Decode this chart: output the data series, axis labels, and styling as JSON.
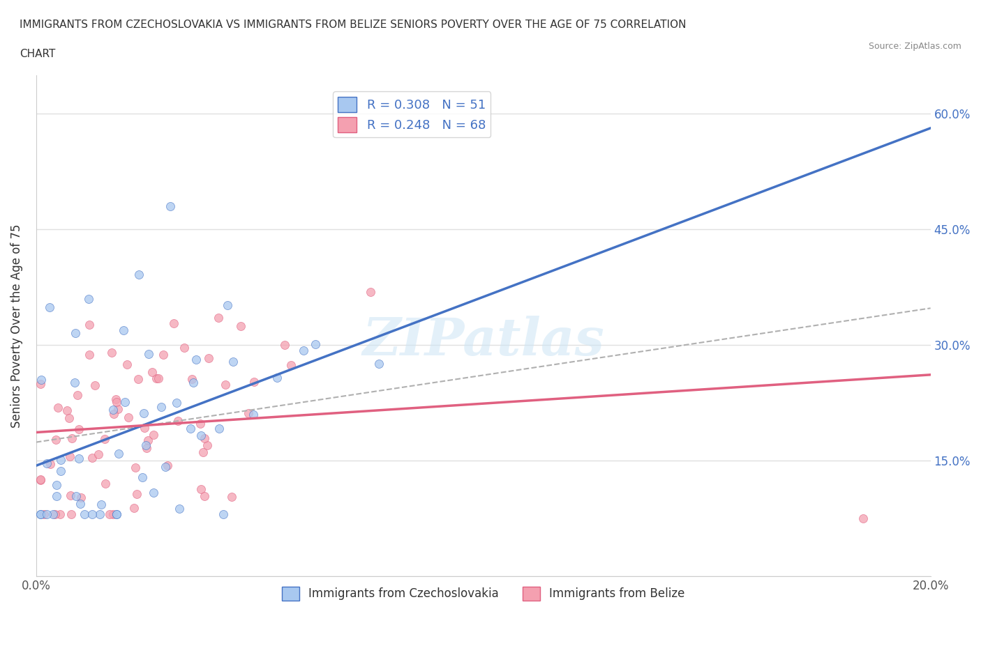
{
  "title_line1": "IMMIGRANTS FROM CZECHOSLOVAKIA VS IMMIGRANTS FROM BELIZE SENIORS POVERTY OVER THE AGE OF 75 CORRELATION",
  "title_line2": "CHART",
  "source": "Source: ZipAtlas.com",
  "ylabel": "Seniors Poverty Over the Age of 75",
  "series1_name": "Immigrants from Czechoslovakia",
  "series1_color": "#a8c8f0",
  "series1_line_color": "#4472c4",
  "series1_R": 0.308,
  "series1_N": 51,
  "series2_name": "Immigrants from Belize",
  "series2_color": "#f4a0b0",
  "series2_line_color": "#e06080",
  "series2_R": 0.248,
  "series2_N": 68,
  "watermark": "ZIPatlas",
  "background_color": "#ffffff",
  "grid_color": "#e0e0e0",
  "xlim": [
    0.0,
    0.2
  ],
  "ylim": [
    0.0,
    0.65
  ]
}
